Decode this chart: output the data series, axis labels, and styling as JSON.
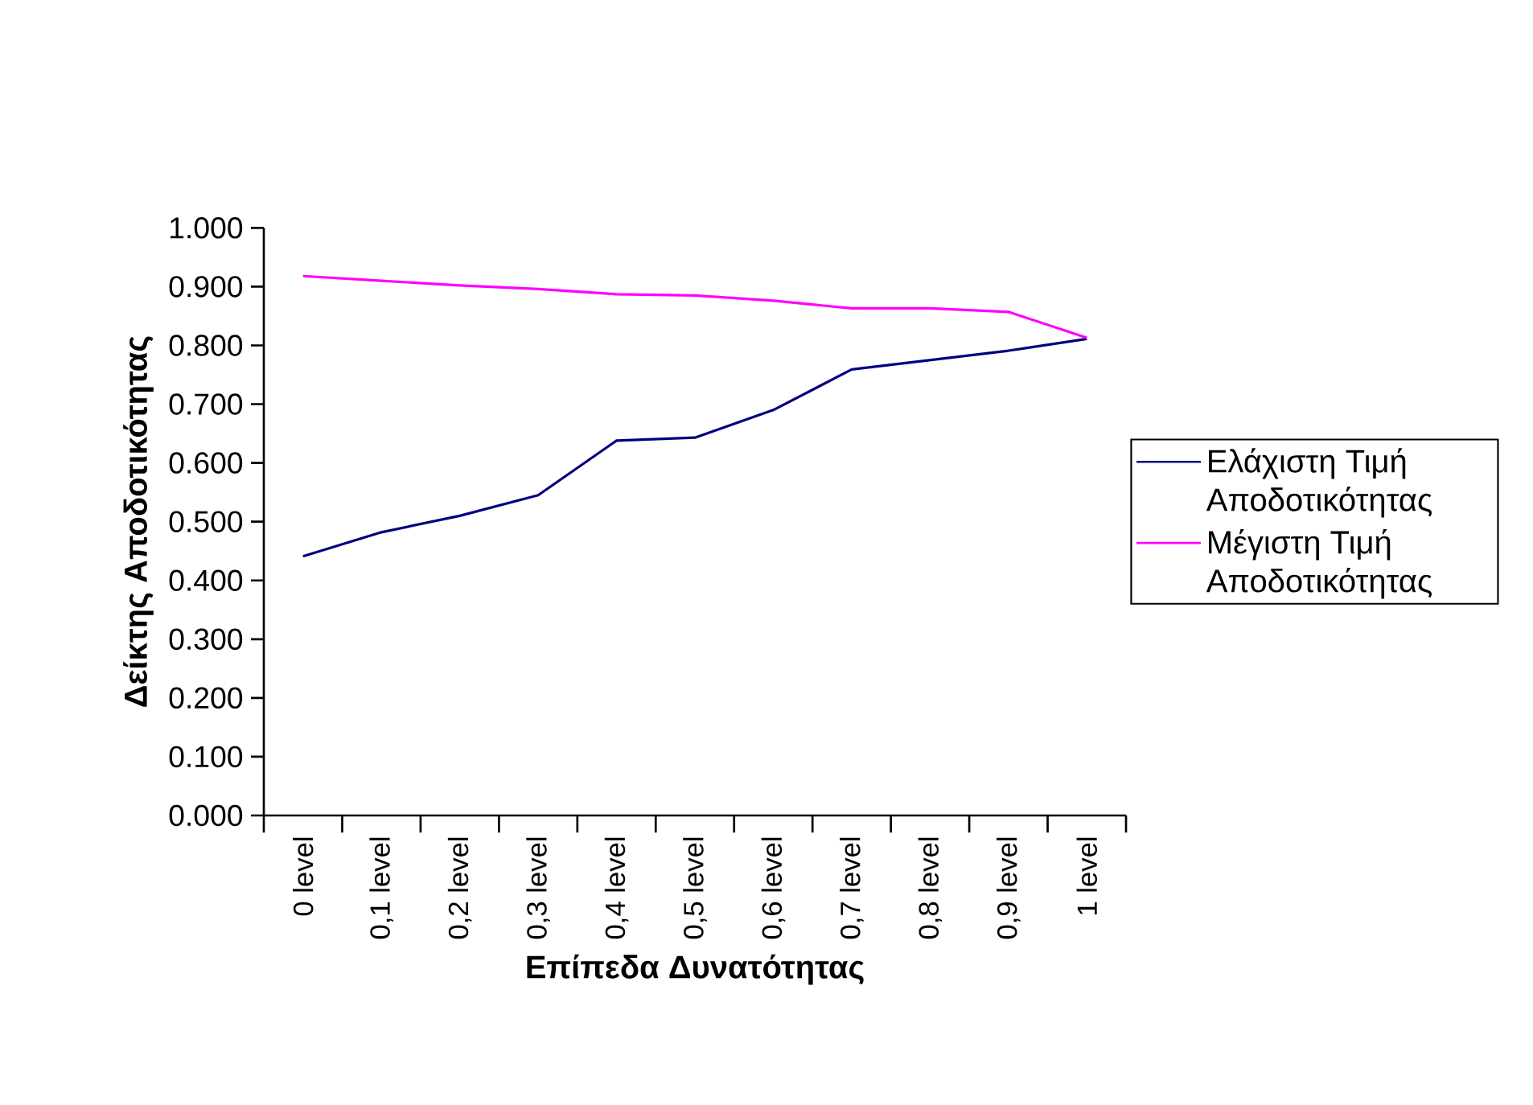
{
  "chart_data": {
    "type": "line",
    "xlabel": "Επίπεδα Δυνατότητας",
    "ylabel": "Δείκτης Αποδοτικότητας",
    "categories": [
      "0 level",
      "0,1 level",
      "0,2 level",
      "0,3 level",
      "0,4 level",
      "0,5 level",
      "0,6 level",
      "0,7 level",
      "0,8 level",
      "0,9 level",
      "1 level"
    ],
    "series": [
      {
        "name": "Ελάχιστη Τιμή Αποδοτικότητας",
        "color": "#000080",
        "values": [
          0.441,
          0.482,
          0.51,
          0.545,
          0.638,
          0.643,
          0.69,
          0.759,
          0.775,
          0.791,
          0.811
        ]
      },
      {
        "name": "Μέγιστη Τιμή Αποδοτικότητας",
        "color": "#ff00ff",
        "values": [
          0.918,
          0.91,
          0.902,
          0.896,
          0.887,
          0.885,
          0.876,
          0.863,
          0.863,
          0.857,
          0.813
        ]
      }
    ],
    "ylim": [
      0,
      1
    ],
    "yticks": [
      {
        "value": 0,
        "label": "0.000"
      },
      {
        "value": 0.1,
        "label": "0.100"
      },
      {
        "value": 0.2,
        "label": "0.200"
      },
      {
        "value": 0.3,
        "label": "0.300"
      },
      {
        "value": 0.4,
        "label": "0.400"
      },
      {
        "value": 0.5,
        "label": "0.500"
      },
      {
        "value": 0.6,
        "label": "0.600"
      },
      {
        "value": 0.7,
        "label": "0.700"
      },
      {
        "value": 0.8,
        "label": "0.800"
      },
      {
        "value": 0.9,
        "label": "0.900"
      },
      {
        "value": 1,
        "label": "1.000"
      }
    ],
    "grid": false,
    "legend": "right",
    "marker": "none",
    "line_style": "solid"
  }
}
